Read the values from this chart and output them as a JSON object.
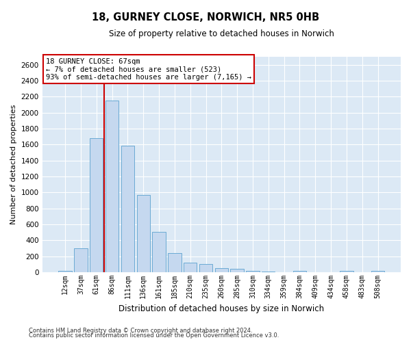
{
  "title": "18, GURNEY CLOSE, NORWICH, NR5 0HB",
  "subtitle": "Size of property relative to detached houses in Norwich",
  "xlabel": "Distribution of detached houses by size in Norwich",
  "ylabel": "Number of detached properties",
  "property_label": "18 GURNEY CLOSE: 67sqm",
  "annotation_line1": "← 7% of detached houses are smaller (523)",
  "annotation_line2": "93% of semi-detached houses are larger (7,165) →",
  "footnote1": "Contains HM Land Registry data © Crown copyright and database right 2024.",
  "footnote2": "Contains public sector information licensed under the Open Government Licence v3.0.",
  "bar_color": "#c5d8ef",
  "bar_edge_color": "#6aaad4",
  "vline_color": "#cc0000",
  "annotation_box_color": "#ffffff",
  "annotation_box_edge": "#cc0000",
  "plot_bg_color": "#dce9f5",
  "categories": [
    "12sqm",
    "37sqm",
    "61sqm",
    "86sqm",
    "111sqm",
    "136sqm",
    "161sqm",
    "185sqm",
    "210sqm",
    "235sqm",
    "260sqm",
    "285sqm",
    "310sqm",
    "334sqm",
    "359sqm",
    "384sqm",
    "409sqm",
    "434sqm",
    "458sqm",
    "483sqm",
    "508sqm"
  ],
  "values": [
    18,
    300,
    1680,
    2150,
    1590,
    970,
    505,
    245,
    120,
    100,
    50,
    40,
    15,
    10,
    5,
    20,
    5,
    5,
    15,
    0,
    18
  ],
  "ylim": [
    0,
    2700
  ],
  "yticks": [
    0,
    200,
    400,
    600,
    800,
    1000,
    1200,
    1400,
    1600,
    1800,
    2000,
    2200,
    2400,
    2600
  ],
  "vline_x_index": 2.5,
  "figsize": [
    6.0,
    5.0
  ],
  "dpi": 100
}
